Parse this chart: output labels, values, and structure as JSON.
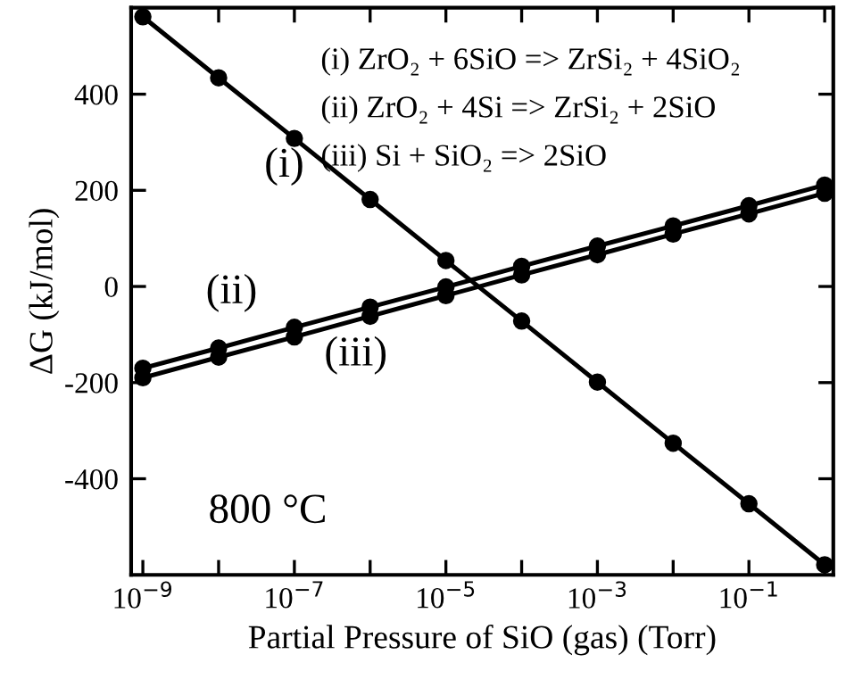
{
  "chart_data": {
    "type": "line",
    "xlabel": "Partial Pressure of SiO (gas) (Torr)",
    "ylabel": "ΔG (kJ/mol)",
    "x": [
      1e-09,
      1e-08,
      1e-07,
      1e-06,
      1e-05,
      0.0001,
      0.001,
      0.01,
      0.1,
      1
    ],
    "series": [
      {
        "color": "#000000",
        "values": [
          561,
          434,
          308,
          181,
          54,
          -72,
          -199,
          -326,
          -452,
          -579
        ]
      },
      {
        "color": "#000000",
        "values": [
          -170,
          -128,
          -85,
          -43,
          -1,
          42,
          84,
          126,
          168,
          211
        ]
      },
      {
        "color": "#000000",
        "values": [
          -190,
          -147,
          -105,
          -62,
          -19,
          24,
          66,
          109,
          151,
          194
        ]
      }
    ],
    "log": "x",
    "xlim": [
      7e-10,
      1.3
    ],
    "ylim": [
      -600,
      580
    ],
    "xticks": [
      {
        "value": 1e-09,
        "label": "10$^{−9}$"
      },
      {
        "value": 1e-08,
        "label": null
      },
      {
        "value": 1e-07,
        "label": "10$^{−7}$"
      },
      {
        "value": 1e-06,
        "label": null
      },
      {
        "value": 1e-05,
        "label": "10$^{−5}$"
      },
      {
        "value": 0.0001,
        "label": null
      },
      {
        "value": 0.001,
        "label": "10$^{−3}$"
      },
      {
        "value": 0.01,
        "label": null
      },
      {
        "value": 0.1,
        "label": "10$^{−1}$"
      },
      {
        "value": 1,
        "label": null
      }
    ],
    "yticks": [
      -400,
      -200,
      0,
      200,
      400
    ],
    "marker": "circle",
    "line_style": "solid",
    "grid": false,
    "legend": false,
    "annotations": [
      "(i) ZrO₂ + 6SiO => ZrSi₂ + 4SiO₂",
      "(ii) ZrO₂ + 4Si => ZrSi₂ + 2SiO",
      "(iii) Si + SiO₂ => 2SiO",
      "800 °C",
      "(i)",
      "(ii)",
      "(iii)"
    ]
  }
}
